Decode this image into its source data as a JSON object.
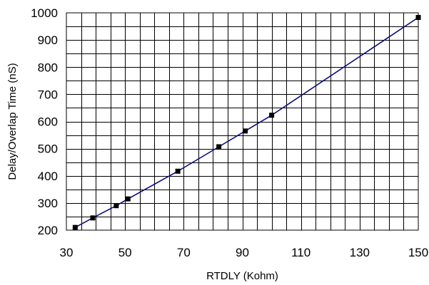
{
  "chart_data": {
    "type": "line",
    "title": "",
    "xlabel": "RTDLY (Kohm)",
    "ylabel": "Delay/Overlap Time (nS)",
    "xlim": [
      30,
      150
    ],
    "ylim": [
      200,
      1000
    ],
    "x_tick_values": [
      30,
      50,
      70,
      90,
      110,
      130,
      150
    ],
    "y_tick_values": [
      200,
      300,
      400,
      500,
      600,
      700,
      800,
      900,
      1000
    ],
    "x_gridline_step": 5,
    "y_gridline_step": 50,
    "grid": true,
    "legend": "none",
    "series": [
      {
        "color": "#0a0a7a",
        "marker": "square",
        "x": [
          33,
          39,
          47,
          51,
          68,
          82,
          91,
          100,
          150
        ],
        "y": [
          210,
          245,
          290,
          315,
          417,
          507,
          565,
          623,
          983
        ]
      }
    ]
  }
}
